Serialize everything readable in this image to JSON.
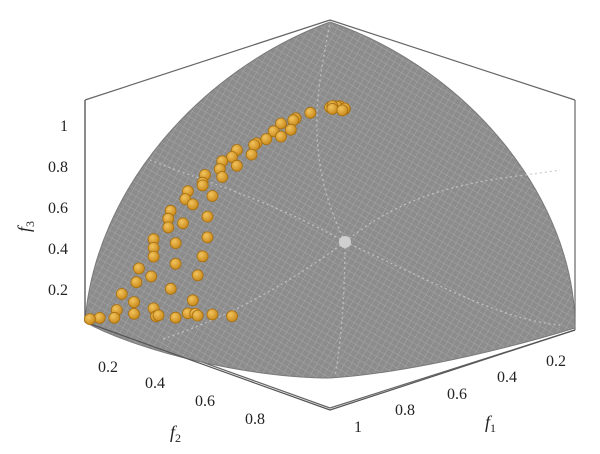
{
  "chart_data": {
    "type": "scatter",
    "projection": "3d",
    "title": "",
    "surface": "Pareto front (spherical octant)",
    "surface_color": "#8a8a8a",
    "point_color": "#e2a12c",
    "axes": {
      "f1": {
        "label": "f",
        "sub": "1",
        "ticks": [
          "1",
          "0.8",
          "0.6",
          "0.4",
          "0.2"
        ]
      },
      "f2": {
        "label": "f",
        "sub": "2",
        "ticks": [
          "0.2",
          "0.4",
          "0.6",
          "0.8"
        ]
      },
      "f3": {
        "label": "f",
        "sub": "3",
        "ticks": [
          "0.2",
          "0.4",
          "0.6",
          "0.8",
          "1"
        ]
      },
      "range": [
        0,
        1
      ]
    },
    "points": [
      [
        0.02,
        0.0,
        1.0
      ],
      [
        0.03,
        0.02,
        0.99
      ],
      [
        0.05,
        0.01,
        0.99
      ],
      [
        0.04,
        0.04,
        0.98
      ],
      [
        0.06,
        0.03,
        0.98
      ],
      [
        0.08,
        0.02,
        0.97
      ],
      [
        0.07,
        0.06,
        0.97
      ],
      [
        0.1,
        0.04,
        0.96
      ],
      [
        0.09,
        0.08,
        0.96
      ],
      [
        0.12,
        0.06,
        0.95
      ],
      [
        0.11,
        0.1,
        0.94
      ],
      [
        0.14,
        0.09,
        0.93
      ],
      [
        0.02,
        0.1,
        0.95
      ],
      [
        0.01,
        0.15,
        0.92
      ],
      [
        0.03,
        0.18,
        0.9
      ],
      [
        0.02,
        0.22,
        0.88
      ],
      [
        0.04,
        0.2,
        0.86
      ],
      [
        0.03,
        0.26,
        0.84
      ],
      [
        0.05,
        0.25,
        0.82
      ],
      [
        0.04,
        0.3,
        0.8
      ],
      [
        0.03,
        0.33,
        0.78
      ],
      [
        0.05,
        0.36,
        0.76
      ],
      [
        0.02,
        0.4,
        0.74
      ],
      [
        0.06,
        0.38,
        0.72
      ],
      [
        0.04,
        0.44,
        0.7
      ],
      [
        0.03,
        0.47,
        0.68
      ],
      [
        0.07,
        0.45,
        0.66
      ],
      [
        0.05,
        0.5,
        0.64
      ],
      [
        0.02,
        0.53,
        0.62
      ],
      [
        0.08,
        0.52,
        0.6
      ],
      [
        0.04,
        0.56,
        0.58
      ],
      [
        0.06,
        0.58,
        0.56
      ],
      [
        0.03,
        0.61,
        0.54
      ],
      [
        0.09,
        0.57,
        0.52
      ],
      [
        0.05,
        0.64,
        0.5
      ],
      [
        0.07,
        0.63,
        0.48
      ],
      [
        0.02,
        0.67,
        0.46
      ],
      [
        0.1,
        0.6,
        0.44
      ],
      [
        0.04,
        0.7,
        0.42
      ],
      [
        0.08,
        0.68,
        0.4
      ],
      [
        0.06,
        0.72,
        0.38
      ],
      [
        0.12,
        0.62,
        0.36
      ],
      [
        0.03,
        0.75,
        0.34
      ],
      [
        0.09,
        0.72,
        0.32
      ],
      [
        0.05,
        0.77,
        0.3
      ],
      [
        0.14,
        0.66,
        0.28
      ],
      [
        0.07,
        0.79,
        0.26
      ],
      [
        0.11,
        0.74,
        0.24
      ],
      [
        0.04,
        0.82,
        0.22
      ],
      [
        0.16,
        0.7,
        0.2
      ],
      [
        0.09,
        0.82,
        0.18
      ],
      [
        0.06,
        0.85,
        0.16
      ],
      [
        0.13,
        0.78,
        0.14
      ],
      [
        0.03,
        0.88,
        0.12
      ],
      [
        0.18,
        0.74,
        0.1
      ],
      [
        0.08,
        0.88,
        0.08
      ],
      [
        0.12,
        0.84,
        0.06
      ],
      [
        0.05,
        0.92,
        0.05
      ],
      [
        0.2,
        0.78,
        0.04
      ],
      [
        0.1,
        0.9,
        0.03
      ],
      [
        0.02,
        0.96,
        0.02
      ],
      [
        0.15,
        0.86,
        0.02
      ],
      [
        0.25,
        0.8,
        0.02
      ],
      [
        0.07,
        0.95,
        0.01
      ],
      [
        0.3,
        0.78,
        0.01
      ],
      [
        0.18,
        0.88,
        0.01
      ],
      [
        0.01,
        0.99,
        0.01
      ],
      [
        0.22,
        0.85,
        0.0
      ],
      [
        0.35,
        0.75,
        0.0
      ],
      [
        0.28,
        0.82,
        0.0
      ]
    ]
  }
}
